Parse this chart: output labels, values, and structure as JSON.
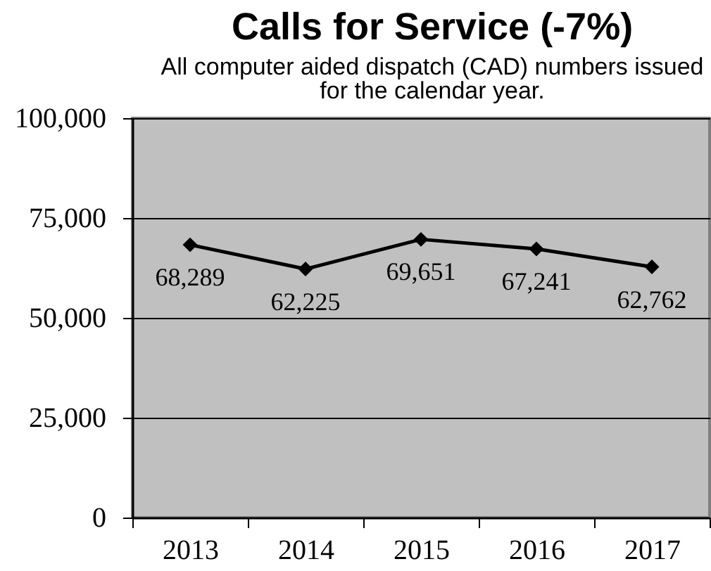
{
  "chart_data": {
    "type": "line",
    "title": "Calls for Service (-7%)",
    "subtitle": "All computer aided dispatch (CAD) numbers issued for the calendar year.",
    "categories": [
      "2013",
      "2014",
      "2015",
      "2016",
      "2017"
    ],
    "series": [
      {
        "color": "#000000",
        "values": [
          68289,
          62225,
          69651,
          67241,
          62762
        ],
        "value_labels": [
          "68,289",
          "62,225",
          "69,651",
          "67,241",
          "62,762"
        ]
      }
    ],
    "ylim": [
      0,
      100000
    ],
    "yticks": [
      0,
      {
        "value": 25000,
        "label": "25,000"
      },
      {
        "value": 50000,
        "label": "50,000"
      },
      {
        "value": 75000,
        "label": "75,000"
      },
      {
        "value": 100000,
        "label": "100,000"
      }
    ],
    "grid": "y",
    "marker": "diamond",
    "line_style": "solid"
  }
}
